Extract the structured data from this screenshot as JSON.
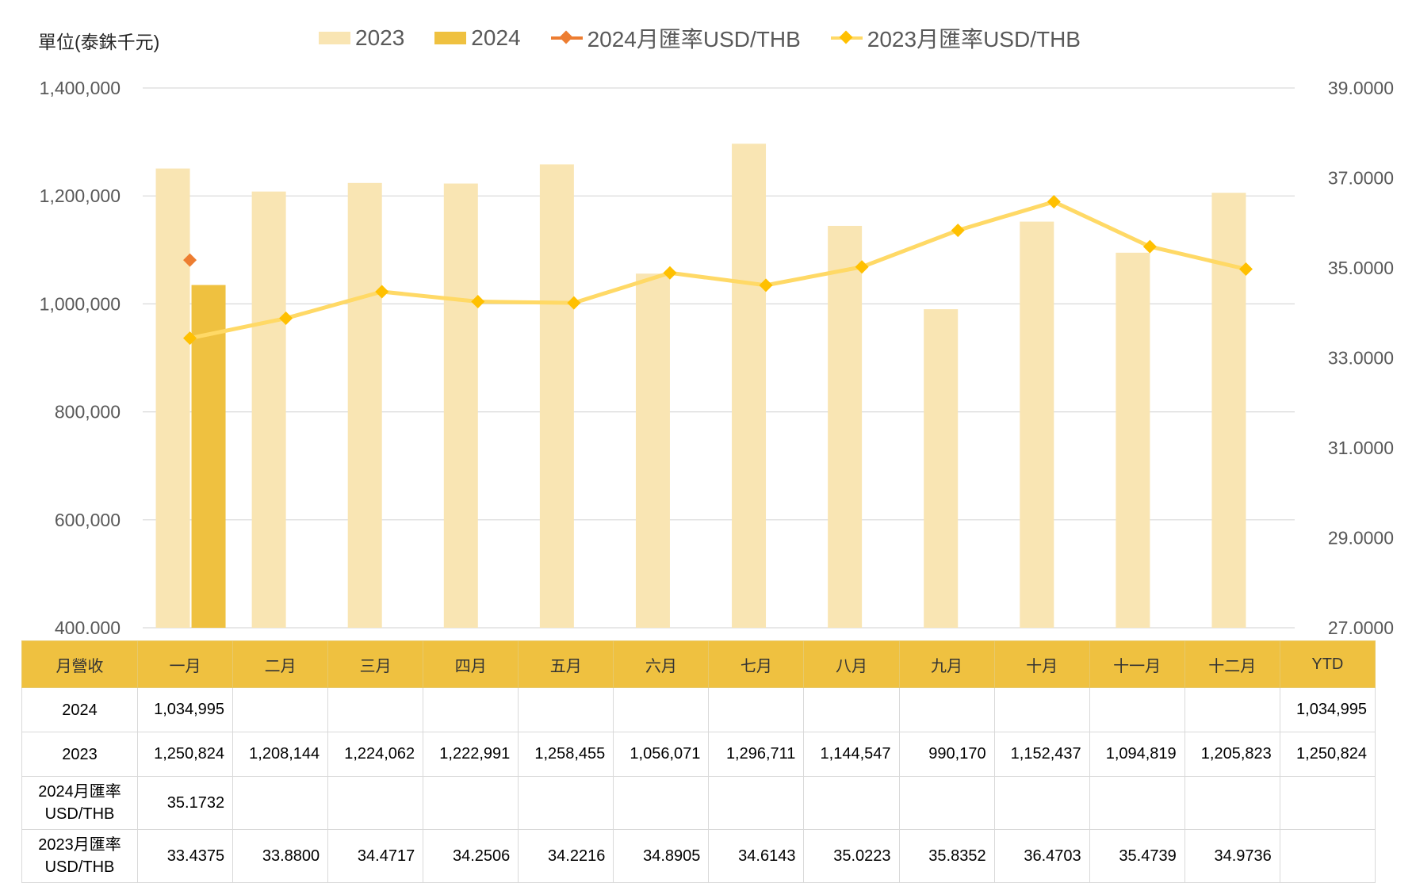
{
  "unit_label": "單位(泰銖千元)",
  "legend": {
    "bar_2023": "2023",
    "bar_2024": "2024",
    "line_2024": "2024月匯率USD/THB",
    "line_2023": "2023月匯率USD/THB"
  },
  "colors": {
    "bar_2023": "#f9e5b3",
    "bar_2024": "#efc140",
    "line_2024": "#ed7d31",
    "line_2023": "#ffd966",
    "marker_2023": "#ffc000",
    "grid": "#d9d9d9"
  },
  "chart_data": {
    "type": "bar",
    "categories": [
      "一月",
      "二月",
      "三月",
      "四月",
      "五月",
      "六月",
      "七月",
      "八月",
      "九月",
      "十月",
      "十一月",
      "十二月"
    ],
    "y_left": {
      "ylim": [
        400000,
        1400000
      ],
      "ticks": [
        "400,000",
        "600,000",
        "800,000",
        "1,000,000",
        "1,200,000",
        "1,400,000"
      ]
    },
    "y_right": {
      "ylim": [
        27,
        39
      ],
      "ticks": [
        "27.0000",
        "29.0000",
        "31.0000",
        "33.0000",
        "35.0000",
        "37.0000",
        "39.0000"
      ]
    },
    "grid": true,
    "legend_position": "top",
    "series": [
      {
        "name": "2023",
        "kind": "bar",
        "axis": "left",
        "values": [
          1250824,
          1208144,
          1224062,
          1222991,
          1258455,
          1056071,
          1296711,
          1144547,
          990170,
          1152437,
          1094819,
          1205823
        ]
      },
      {
        "name": "2024",
        "kind": "bar",
        "axis": "left",
        "values": [
          1034995,
          null,
          null,
          null,
          null,
          null,
          null,
          null,
          null,
          null,
          null,
          null
        ]
      },
      {
        "name": "2024月匯率USD/THB",
        "kind": "line",
        "axis": "right",
        "values": [
          35.1732,
          null,
          null,
          null,
          null,
          null,
          null,
          null,
          null,
          null,
          null,
          null
        ]
      },
      {
        "name": "2023月匯率USD/THB",
        "kind": "line",
        "axis": "right",
        "values": [
          33.4375,
          33.88,
          34.4717,
          34.2506,
          34.2216,
          34.8905,
          34.6143,
          35.0223,
          35.8352,
          36.4703,
          35.4739,
          34.9736
        ]
      }
    ]
  },
  "table": {
    "header": [
      "月營收",
      "一月",
      "二月",
      "三月",
      "四月",
      "五月",
      "六月",
      "七月",
      "八月",
      "九月",
      "十月",
      "十一月",
      "十二月",
      "YTD"
    ],
    "rows": [
      {
        "label": [
          "2024"
        ],
        "cells": [
          "1,034,995",
          "",
          "",
          "",
          "",
          "",
          "",
          "",
          "",
          "",
          "",
          "",
          "1,034,995"
        ]
      },
      {
        "label": [
          "2023"
        ],
        "cells": [
          "1,250,824",
          "1,208,144",
          "1,224,062",
          "1,222,991",
          "1,258,455",
          "1,056,071",
          "1,296,711",
          "1,144,547",
          "990,170",
          "1,152,437",
          "1,094,819",
          "1,205,823",
          "1,250,824"
        ]
      },
      {
        "label": [
          "2024月匯率",
          "USD/THB"
        ],
        "cells": [
          "35.1732",
          "",
          "",
          "",
          "",
          "",
          "",
          "",
          "",
          "",
          "",
          "",
          ""
        ]
      },
      {
        "label": [
          "2023月匯率",
          "USD/THB"
        ],
        "cells": [
          "33.4375",
          "33.8800",
          "34.4717",
          "34.2506",
          "34.2216",
          "34.8905",
          "34.6143",
          "35.0223",
          "35.8352",
          "36.4703",
          "35.4739",
          "34.9736",
          ""
        ]
      }
    ]
  }
}
